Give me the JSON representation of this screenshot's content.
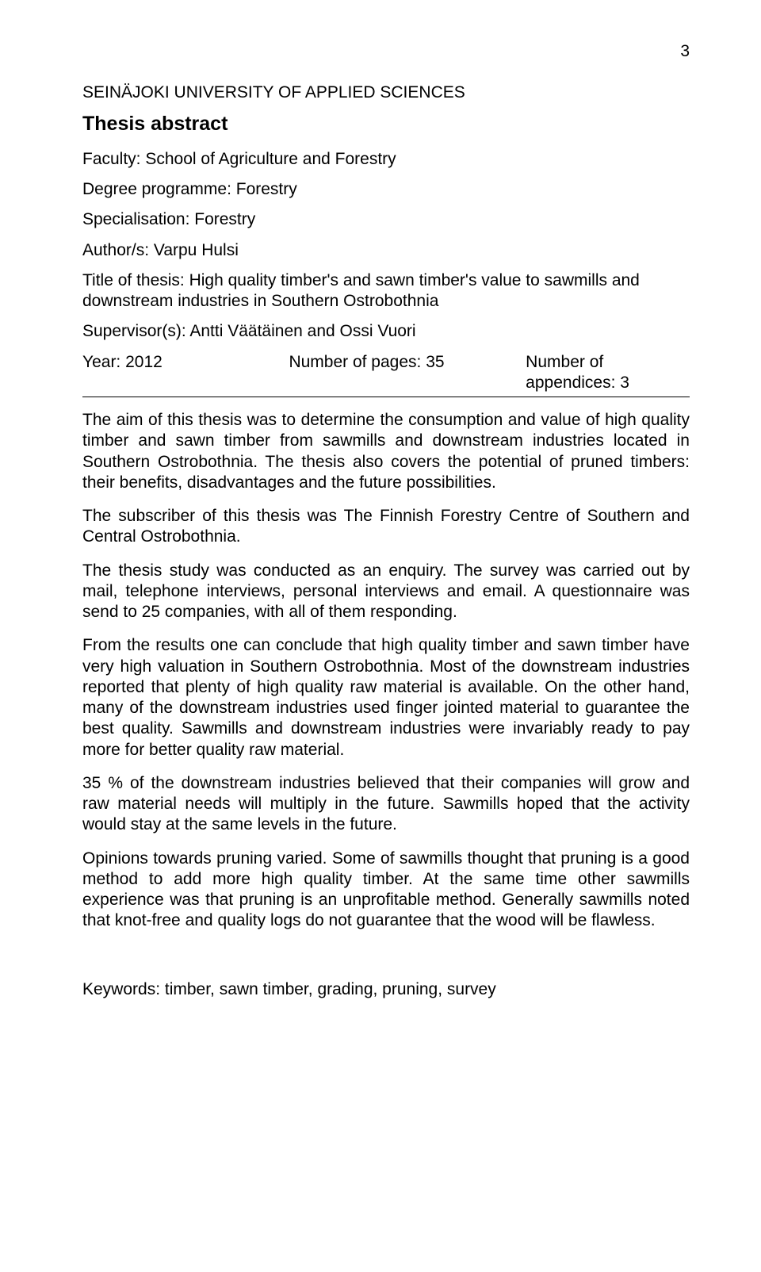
{
  "page_number": "3",
  "institution": "SEINÄJOKI UNIVERSITY OF APPLIED SCIENCES",
  "heading": "Thesis abstract",
  "fields": {
    "faculty": "Faculty: School of Agriculture and Forestry",
    "degree_programme": "Degree programme: Forestry",
    "specialisation": "Specialisation: Forestry",
    "authors": "Author/s: Varpu Hulsi",
    "title": "Title of thesis: High quality timber's and sawn timber's value to sawmills and downstream industries in Southern Ostrobothnia",
    "supervisors": "Supervisor(s): Antti Väätäinen and Ossi Vuori"
  },
  "meta": {
    "year": "Year: 2012",
    "pages": "Number of pages: 35",
    "appendices": "Number of appendices: 3"
  },
  "paragraphs": [
    "The aim of this thesis was to determine the consumption and value of high quality timber and sawn timber from sawmills and downstream industries located in Southern Ostrobothnia. The thesis also covers the potential of pruned timbers: their benefits, disadvantages and the future possibilities.",
    "The subscriber of this thesis was The Finnish Forestry Centre of Southern and Central Ostrobothnia.",
    "The thesis study was conducted as an enquiry. The survey was carried out by mail, telephone interviews, personal interviews and email. A questionnaire was send to 25 companies, with all of them responding.",
    "From the results one can conclude that high quality timber and sawn timber have very high valuation in Southern Ostrobothnia. Most of the downstream industries reported that plenty of high quality raw material is available. On the other hand, many of the downstream industries used finger jointed material to guarantee the best quality. Sawmills and downstream industries were invariably ready to pay more for better quality raw material.",
    "35 % of the downstream industries believed that their companies will grow and raw material needs will multiply in the future. Sawmills hoped that the activity would stay at the same levels in the future.",
    "Opinions towards pruning varied. Some of sawmills thought that pruning is a good method to add more high quality timber. At the same time other sawmills experience was that pruning is an unprofitable method. Generally sawmills noted that knot-free and quality logs do not guarantee that the wood will be flawless."
  ],
  "keywords": "Keywords: timber, sawn timber, grading, pruning, survey"
}
